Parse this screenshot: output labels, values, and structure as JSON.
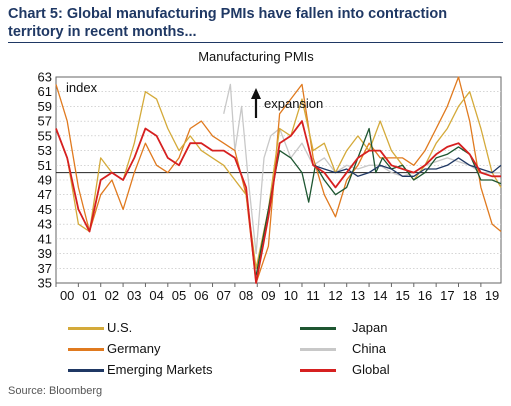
{
  "title": "Chart 5: Global manufacturing PMIs have fallen into contraction territory in recent months...",
  "source": "Source: Bloomberg",
  "chart_data": {
    "type": "line",
    "title": "Manufacturing PMIs",
    "ylabel": "index",
    "annotation": "expansion",
    "reference_line": 50,
    "ylim": [
      35,
      63
    ],
    "yticks": [
      35,
      37,
      39,
      41,
      43,
      45,
      47,
      49,
      51,
      53,
      55,
      57,
      59,
      61,
      63
    ],
    "xlim": [
      2000,
      2019.9
    ],
    "xtick_labels": [
      "00",
      "01",
      "02",
      "03",
      "04",
      "05",
      "06",
      "07",
      "08",
      "09",
      "10",
      "11",
      "12",
      "13",
      "14",
      "15",
      "16",
      "17",
      "18",
      "19"
    ],
    "legend_position": "bottom",
    "series": [
      {
        "name": "U.S.",
        "color": "#d4aa3a",
        "x": [
          2000,
          2000.5,
          2001,
          2001.5,
          2002,
          2002.5,
          2003,
          2003.5,
          2004,
          2004.5,
          2005,
          2005.5,
          2006,
          2006.5,
          2007,
          2007.5,
          2008,
          2008.5,
          2008.95,
          2009.5,
          2010,
          2010.5,
          2011,
          2011.5,
          2012,
          2012.5,
          2013,
          2013.5,
          2014,
          2014.5,
          2015,
          2015.5,
          2016,
          2016.5,
          2017,
          2017.5,
          2018,
          2018.5,
          2019,
          2019.5,
          2019.9
        ],
        "y": [
          56,
          52,
          43,
          42,
          52,
          50,
          49,
          54,
          61,
          60,
          56,
          53,
          55,
          53,
          52,
          51,
          49,
          47,
          37,
          45,
          56,
          55,
          60,
          53,
          54,
          50,
          53,
          55,
          53,
          57,
          53,
          51,
          49,
          51,
          54,
          56,
          59,
          61,
          56,
          50,
          48
        ]
      },
      {
        "name": "Germany",
        "color": "#e07a1f",
        "x": [
          2000,
          2000.5,
          2001,
          2001.5,
          2002,
          2002.5,
          2003,
          2003.5,
          2004,
          2004.5,
          2005,
          2005.5,
          2006,
          2006.5,
          2007,
          2007.5,
          2008,
          2008.5,
          2008.95,
          2009.5,
          2010,
          2010.5,
          2011,
          2011.5,
          2012,
          2012.5,
          2013,
          2013.5,
          2014,
          2014.5,
          2015,
          2015.5,
          2016,
          2016.5,
          2017,
          2017.5,
          2018,
          2018.5,
          2019,
          2019.5,
          2019.9
        ],
        "y": [
          62,
          57,
          48,
          42,
          47,
          49,
          45,
          50,
          54,
          51,
          50,
          52,
          56,
          57,
          55,
          54,
          53,
          47,
          35,
          40,
          58,
          60,
          62,
          52,
          47,
          44,
          49,
          51,
          54,
          52,
          52,
          52,
          51,
          53,
          56,
          59,
          63,
          57,
          48,
          43,
          42
        ]
      },
      {
        "name": "Emerging Markets",
        "color": "#1f3864",
        "x": [
          2011.5,
          2012,
          2012.5,
          2013,
          2013.5,
          2014,
          2014.5,
          2015,
          2015.5,
          2016,
          2016.5,
          2017,
          2017.5,
          2018,
          2018.5,
          2019,
          2019.5,
          2019.9
        ],
        "y": [
          51,
          50.5,
          50,
          50.5,
          49.5,
          50,
          51,
          50.5,
          49.5,
          49.5,
          50.5,
          50.5,
          51,
          52,
          51,
          50.5,
          50,
          51
        ]
      },
      {
        "name": "Japan",
        "color": "#1e5631",
        "x": [
          2008.95,
          2009.5,
          2010,
          2010.5,
          2011,
          2011.3,
          2011.6,
          2012,
          2012.5,
          2013,
          2013.5,
          2014,
          2014.3,
          2014.6,
          2015,
          2015.5,
          2016,
          2016.5,
          2017,
          2017.5,
          2018,
          2018.5,
          2019,
          2019.5,
          2019.9
        ],
        "y": [
          36,
          45,
          53,
          52,
          50,
          46,
          51,
          49,
          47,
          48,
          52,
          56,
          50,
          52,
          50.5,
          51,
          49,
          50,
          52,
          52.5,
          53.5,
          52.5,
          49,
          49,
          48.5
        ]
      },
      {
        "name": "China",
        "color": "#c8c8c8",
        "x": [
          2007.5,
          2007.8,
          2008,
          2008.3,
          2008.6,
          2008.95,
          2009.3,
          2009.6,
          2010,
          2010.5,
          2011,
          2011.5,
          2012,
          2012.5,
          2013,
          2013.5,
          2014,
          2014.5,
          2015,
          2015.5,
          2016,
          2016.5,
          2017,
          2017.5,
          2018,
          2018.5,
          2019,
          2019.5,
          2019.9
        ],
        "y": [
          58,
          62,
          53,
          59,
          49,
          39,
          52,
          55,
          56,
          52,
          54,
          51,
          52,
          50,
          51,
          50.5,
          51,
          51,
          50,
          49.5,
          50,
          51,
          51.5,
          52,
          51.5,
          51,
          50,
          50,
          50
        ]
      },
      {
        "name": "Global",
        "color": "#d62020",
        "x": [
          2000,
          2000.5,
          2001,
          2001.5,
          2002,
          2002.5,
          2003,
          2003.5,
          2004,
          2004.5,
          2005,
          2005.5,
          2006,
          2006.5,
          2007,
          2007.5,
          2008,
          2008.5,
          2008.95,
          2009.5,
          2010,
          2010.5,
          2011,
          2011.5,
          2012,
          2012.5,
          2013,
          2013.5,
          2014,
          2014.5,
          2015,
          2015.5,
          2016,
          2016.5,
          2017,
          2017.5,
          2018,
          2018.5,
          2019,
          2019.5,
          2019.9
        ],
        "y": [
          56,
          52,
          45,
          42,
          49,
          50,
          49,
          52,
          56,
          55,
          52,
          51,
          54,
          54,
          53,
          53,
          52,
          48,
          35,
          44,
          54,
          55,
          57,
          51,
          50,
          48,
          50,
          52,
          53,
          53,
          51,
          50.5,
          50,
          51,
          52.5,
          53.5,
          54,
          52.5,
          50,
          49.5,
          49.5
        ]
      }
    ]
  }
}
